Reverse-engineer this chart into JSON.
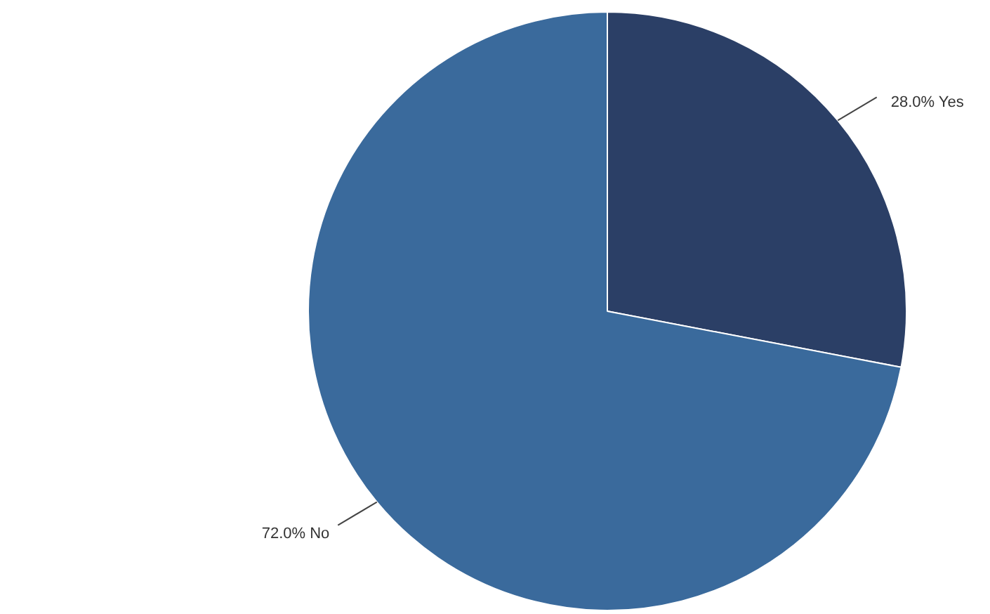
{
  "chart_data": {
    "type": "pie",
    "categories": [
      "Yes",
      "No"
    ],
    "values": [
      28.0,
      72.0
    ],
    "colors": [
      "#2b3f66",
      "#3a6a9c"
    ],
    "value_labels": [
      "28.0%",
      "72.0%"
    ],
    "legend": false
  }
}
